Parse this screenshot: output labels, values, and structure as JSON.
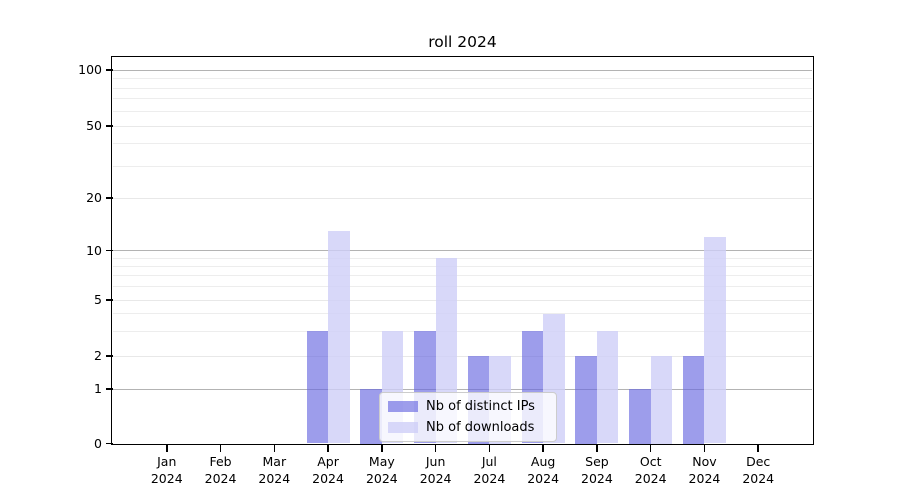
{
  "chart_data": {
    "type": "bar",
    "title": "roll 2024",
    "xlabel": "",
    "ylabel": "",
    "categories": [
      "Jan",
      "Feb",
      "Mar",
      "Apr",
      "May",
      "Jun",
      "Jul",
      "Aug",
      "Sep",
      "Oct",
      "Nov",
      "Dec"
    ],
    "category_year": "2024",
    "series": [
      {
        "name": "Nb of distinct IPs",
        "color": "rgba(105,105,225,0.65)",
        "values": [
          0,
          0,
          0,
          3,
          1,
          3,
          2,
          3,
          2,
          1,
          2,
          0
        ]
      },
      {
        "name": "Nb of downloads",
        "color": "rgba(206,206,248,0.8)",
        "values": [
          0,
          0,
          0,
          13,
          3,
          9,
          2,
          4,
          3,
          2,
          12,
          0
        ]
      }
    ],
    "y_axis": {
      "scale": "symlog-like",
      "tick_values": [
        0,
        1,
        2,
        5,
        10,
        20,
        50,
        100
      ],
      "tick_labels": [
        "0",
        "1",
        "2",
        "5",
        "10",
        "20",
        "50",
        "100"
      ],
      "minor_tick_values": [
        3,
        4,
        6,
        7,
        8,
        9,
        30,
        40,
        60,
        70,
        80,
        90
      ]
    },
    "legend": {
      "position": "lower-center",
      "entries": [
        "Nb of distinct IPs",
        "Nb of downloads"
      ]
    },
    "grid": true
  },
  "colors": {
    "background": "#ffffff",
    "axis": "#000000",
    "grid_power10": "#b3b3b3",
    "grid_light": "#e8e8e8",
    "grid_minor": "#ededed",
    "bar_distinct_ips": "rgba(105,105,225,0.65)",
    "bar_downloads": "rgba(206,206,248,0.8)"
  }
}
